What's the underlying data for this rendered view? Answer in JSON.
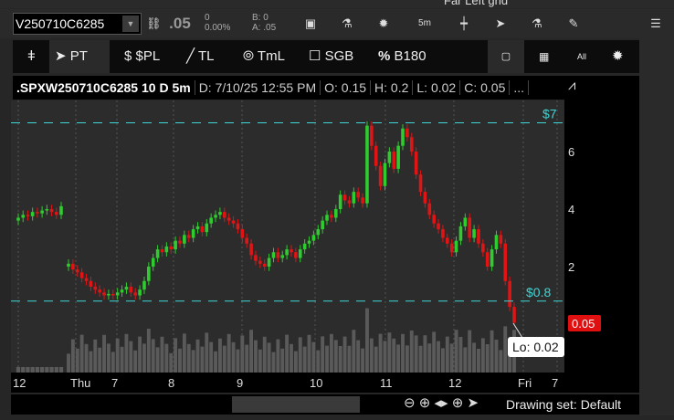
{
  "top_strip": {
    "grid_label": "Far Left grid"
  },
  "toolbar": {
    "symbol": "V250710C6285",
    "last": ".05",
    "change": "0",
    "change_pct": "0.00%",
    "bid": "B: 0",
    "ask": "A: .05",
    "interval": "5m"
  },
  "drawing_toolbar": {
    "items": [
      {
        "icon": "pin-icon",
        "label": ""
      },
      {
        "icon": "cursor-icon",
        "label": "PT"
      },
      {
        "icon": "dollar-icon",
        "label": "$PL"
      },
      {
        "icon": "line-icon",
        "label": "TL"
      },
      {
        "icon": "time-line-icon",
        "label": "TmL"
      },
      {
        "icon": "box-icon",
        "label": "SGB"
      },
      {
        "icon": "percent-icon",
        "label": "B180"
      }
    ]
  },
  "info": {
    "title": ".SPXW250710C6285 10 D 5m",
    "date": "D: 7/10/25 12:55 PM",
    "open": "O: 0.15",
    "high": "H: 0.2",
    "low": "L: 0.02",
    "close": "C: 0.05",
    "more": "..."
  },
  "chart_data": {
    "type": "candlestick",
    "price_ticks": [
      2,
      4,
      6
    ],
    "ylim": [
      0,
      7.5
    ],
    "levels": [
      {
        "label": "$7",
        "value": 7,
        "color": "#3fd6d6"
      },
      {
        "label": "$0.8",
        "value": 0.8,
        "color": "#3fd6d6"
      }
    ],
    "last_price": {
      "label": "0.05",
      "color": "#e01010"
    },
    "low_tooltip": "Lo: 0.02",
    "time_ticks": [
      "12",
      "Thu",
      "7",
      "8",
      "9",
      "10",
      "11",
      "12",
      "Fri",
      "7"
    ],
    "prev_day_closes": [
      3.7,
      3.8,
      3.75,
      3.9,
      3.85,
      3.95,
      4.0,
      3.9,
      3.8,
      4.1
    ],
    "closes": [
      2.1,
      1.9,
      1.8,
      1.6,
      1.5,
      1.3,
      1.2,
      1.1,
      1.0,
      1.05,
      1.0,
      1.1,
      1.2,
      1.3,
      1.1,
      1.0,
      1.2,
      1.5,
      2.0,
      2.3,
      2.6,
      2.5,
      2.7,
      2.6,
      2.9,
      2.8,
      3.1,
      3.0,
      3.3,
      3.4,
      3.2,
      3.5,
      3.7,
      3.8,
      3.9,
      3.7,
      3.6,
      3.5,
      3.3,
      3.0,
      2.8,
      2.4,
      2.2,
      2.1,
      2.0,
      2.3,
      2.5,
      2.3,
      2.4,
      2.6,
      2.5,
      2.3,
      2.6,
      2.8,
      2.9,
      3.1,
      3.3,
      3.6,
      3.8,
      3.7,
      4.0,
      4.5,
      4.3,
      4.2,
      4.6,
      4.4,
      4.2,
      6.9,
      6.2,
      5.5,
      4.8,
      5.6,
      6.0,
      5.4,
      6.2,
      6.8,
      6.5,
      6.0,
      5.2,
      4.6,
      4.2,
      3.8,
      3.5,
      3.3,
      3.0,
      2.8,
      2.5,
      2.9,
      3.4,
      3.7,
      3.0,
      3.3,
      2.8,
      2.5,
      2.0,
      2.6,
      3.1,
      2.8,
      1.5,
      0.6,
      0.05
    ],
    "colors": {
      "up": "#2ecc2e",
      "down": "#e01414",
      "volume": "#5a5a5a"
    }
  },
  "status": {
    "drawing_set": "Drawing set: Default"
  }
}
